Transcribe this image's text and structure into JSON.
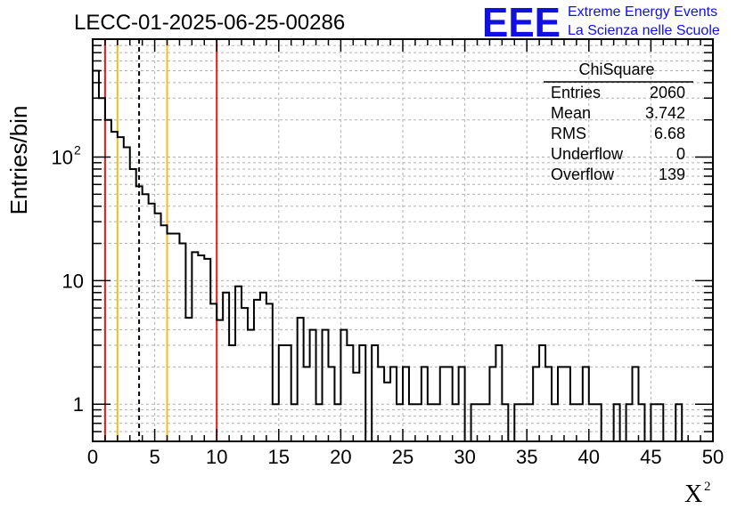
{
  "header": {
    "run_title": "LECC-01-2025-06-25-00286",
    "logo_text": "EEE",
    "logo_line1": "Extreme Energy Events",
    "logo_line2": "La Scienza nelle Scuole"
  },
  "stats_box": {
    "title": "ChiSquare",
    "rows": [
      {
        "label": "Entries",
        "value": "2060"
      },
      {
        "label": "Mean",
        "value": "3.742"
      },
      {
        "label": "RMS",
        "value": "6.68"
      },
      {
        "label": "Underflow",
        "value": "0"
      },
      {
        "label": "Overflow",
        "value": "139"
      }
    ]
  },
  "chart_data": {
    "type": "histogram",
    "xlabel": "X",
    "xlabel_sup": "2",
    "ylabel": "Entries/bin",
    "xlim": [
      0,
      50
    ],
    "ylim": [
      0.5,
      900
    ],
    "y_scale": "log",
    "grid": true,
    "x_ticks": [
      0,
      5,
      10,
      15,
      20,
      25,
      30,
      35,
      40,
      45,
      50
    ],
    "x_tick_labels": [
      "0",
      "5",
      "10",
      "15",
      "20",
      "25",
      "30",
      "35",
      "40",
      "45",
      "50"
    ],
    "y_major_ticks": [
      1,
      10,
      100
    ],
    "y_tick_labels": [
      "1",
      "10",
      "10"
    ],
    "y_tick_label_sup": [
      "",
      "",
      "2"
    ],
    "bin_width": 0.5,
    "bins": [
      [
        0,
        500
      ],
      [
        0.5,
        300
      ],
      [
        1,
        200
      ],
      [
        1.5,
        160
      ],
      [
        2,
        145
      ],
      [
        2.5,
        120
      ],
      [
        3,
        80
      ],
      [
        3.5,
        58
      ],
      [
        4,
        50
      ],
      [
        4.5,
        42
      ],
      [
        5,
        35
      ],
      [
        5.5,
        28
      ],
      [
        6,
        24
      ],
      [
        6.5,
        24
      ],
      [
        7,
        20
      ],
      [
        7.5,
        5
      ],
      [
        8,
        17
      ],
      [
        8.5,
        16
      ],
      [
        9,
        15
      ],
      [
        9.5,
        6.5
      ],
      [
        10,
        4.8
      ],
      [
        10.5,
        8
      ],
      [
        11,
        3
      ],
      [
        11.5,
        9
      ],
      [
        12,
        6
      ],
      [
        12.5,
        4
      ],
      [
        13,
        7
      ],
      [
        13.5,
        8
      ],
      [
        14,
        6.5
      ],
      [
        14.5,
        1
      ],
      [
        15,
        3
      ],
      [
        15.5,
        3
      ],
      [
        16,
        1
      ],
      [
        16.5,
        5
      ],
      [
        17,
        2
      ],
      [
        17.5,
        4
      ],
      [
        18,
        1
      ],
      [
        18.5,
        4
      ],
      [
        19,
        2
      ],
      [
        19.5,
        1
      ],
      [
        20,
        4
      ],
      [
        20.5,
        3
      ],
      [
        21,
        1.8
      ],
      [
        21.5,
        3
      ],
      [
        22,
        0.5
      ],
      [
        22.5,
        3
      ],
      [
        23,
        2
      ],
      [
        23.5,
        1.5
      ],
      [
        24,
        2
      ],
      [
        24.5,
        1
      ],
      [
        25,
        2
      ],
      [
        25.5,
        1
      ],
      [
        26,
        1
      ],
      [
        26.5,
        2
      ],
      [
        27,
        1
      ],
      [
        27.5,
        1
      ],
      [
        28,
        2
      ],
      [
        28.5,
        2
      ],
      [
        29,
        1
      ],
      [
        29.5,
        2
      ],
      [
        30,
        0.5
      ],
      [
        30.5,
        1
      ],
      [
        31,
        1
      ],
      [
        31.5,
        1
      ],
      [
        32,
        2
      ],
      [
        32.5,
        3
      ],
      [
        33,
        1
      ],
      [
        33.5,
        0.5
      ],
      [
        34,
        1
      ],
      [
        34.5,
        1
      ],
      [
        35,
        1
      ],
      [
        35.5,
        2
      ],
      [
        36,
        3
      ],
      [
        36.5,
        2
      ],
      [
        37,
        1
      ],
      [
        37.5,
        2
      ],
      [
        38,
        2
      ],
      [
        38.5,
        1
      ],
      [
        39,
        1
      ],
      [
        39.5,
        2
      ],
      [
        40,
        1
      ],
      [
        40.5,
        1
      ],
      [
        41,
        0.5
      ],
      [
        41.5,
        0.5
      ],
      [
        42,
        1
      ],
      [
        42.5,
        0.5
      ],
      [
        43,
        1
      ],
      [
        43.5,
        2
      ],
      [
        44,
        1
      ],
      [
        44.5,
        0.5
      ],
      [
        45,
        1
      ],
      [
        45.5,
        1
      ],
      [
        46,
        0.5
      ],
      [
        46.5,
        0.5
      ],
      [
        47,
        1
      ],
      [
        47.5,
        0.5
      ]
    ],
    "vertical_lines": [
      {
        "x": 1,
        "color": "#e0201c",
        "style": "solid"
      },
      {
        "x": 10,
        "color": "#e0201c",
        "style": "solid"
      },
      {
        "x": 2,
        "color": "#f0c020",
        "style": "solid"
      },
      {
        "x": 6,
        "color": "#f0c020",
        "style": "solid"
      },
      {
        "x": 3.742,
        "color": "#000000",
        "style": "dashed"
      }
    ]
  }
}
